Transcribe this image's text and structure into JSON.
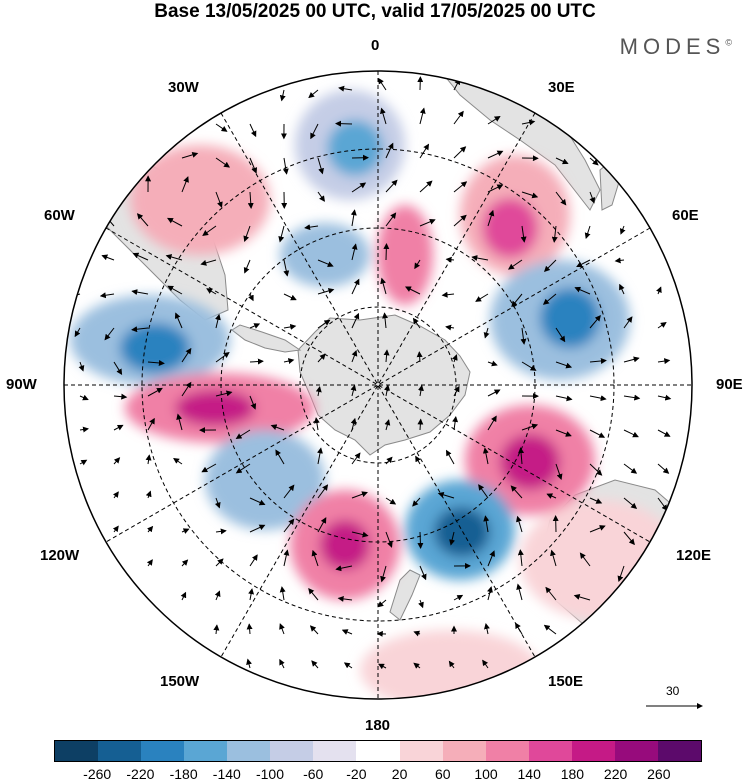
{
  "title": "Base 13/05/2025 00 UTC, valid 17/05/2025 00 UTC",
  "brand": "MODES",
  "brand_mark": "©",
  "longitude_labels": {
    "top": "0",
    "top_left": "30W",
    "top_right": "30E",
    "upper_left": "60W",
    "upper_right": "60E",
    "left": "90W",
    "right": "90E",
    "lower_left": "120W",
    "lower_right": "120E",
    "bottom_left": "150W",
    "bottom_right": "150E",
    "bottom": "180"
  },
  "reference_vector": {
    "label": "30"
  },
  "colorbar": {
    "colors": [
      "#0d3f64",
      "#155f93",
      "#2a82bf",
      "#5aa6d4",
      "#9bbfdf",
      "#c5cde6",
      "#e4e1ef",
      "#ffffff",
      "#f9d4d8",
      "#f5aeb9",
      "#f080a6",
      "#e0489a",
      "#c51a86",
      "#970b7c",
      "#5c0a6b"
    ],
    "ticks": [
      "-260",
      "-220",
      "-180",
      "-140",
      "-100",
      "-60",
      "-20",
      "20",
      "60",
      "100",
      "140",
      "180",
      "220",
      "260"
    ]
  },
  "map": {
    "projection": "south polar stereographic",
    "field_colors": {
      "land": "#e3e3e3",
      "coast": "#888888"
    }
  }
}
